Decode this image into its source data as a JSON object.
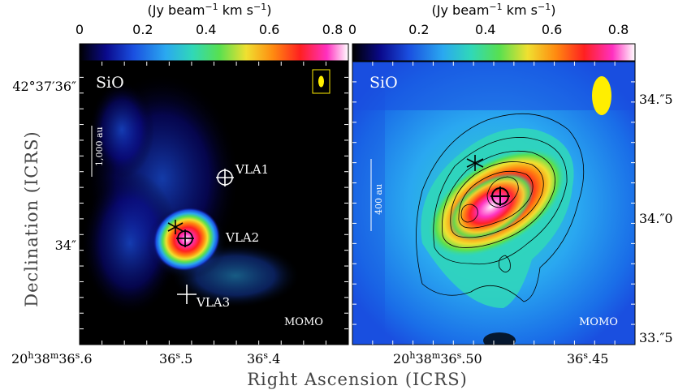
{
  "figure": {
    "ylabel": "Declination (ICRS)",
    "xlabel": "Right Ascension (ICRS)",
    "credit": "MOMO"
  },
  "colors": {
    "background": "#000000",
    "colormap": [
      "#000000",
      "#0a0a8c",
      "#1a4fe0",
      "#2aa8f0",
      "#30d8b8",
      "#58e050",
      "#f0e030",
      "#ff8a10",
      "#ff2020",
      "#ff30c0",
      "#ffffff"
    ],
    "beam": "#ffee00"
  },
  "chart_data": [
    {
      "type": "heatmap",
      "molecule": "SiO",
      "colorbar": {
        "label": "(Jy beam⁻¹ km s⁻¹)",
        "range": [
          0,
          0.85
        ],
        "ticks": [
          "0",
          "0.2",
          "0.4",
          "0.6",
          "0.8"
        ]
      },
      "y_ticks": [
        {
          "label": "42°37′36″",
          "value": 36.0
        },
        {
          "label": "34″",
          "value": 34.0
        }
      ],
      "x_ticks": [
        {
          "label": "20h38m36.s6",
          "value": 36.6
        },
        {
          "label": "36.s5",
          "value": 36.5
        },
        {
          "label": "36.s4",
          "value": 36.4
        }
      ],
      "scalebar": "1,000 au",
      "sources": [
        {
          "name": "VLA1",
          "marker": "circle-cross"
        },
        {
          "name": "VLA2",
          "marker": "circle-cross"
        },
        {
          "name": "VLA3",
          "marker": "cross"
        }
      ],
      "emission_peak_jy": 0.8
    },
    {
      "type": "heatmap",
      "molecule": "SiO",
      "colorbar": {
        "label": "(Jy beam⁻¹ km s⁻¹)",
        "range": [
          0,
          0.85
        ],
        "ticks": [
          "0",
          "0.2",
          "0.4",
          "0.6",
          "0.8"
        ]
      },
      "y_ticks": [
        {
          "label": "34.″5",
          "value": 34.5
        },
        {
          "label": "34.″0",
          "value": 34.0
        },
        {
          "label": "33.″5",
          "value": 33.5
        }
      ],
      "x_ticks": [
        {
          "label": "20h38m36.s50",
          "value": 36.5
        },
        {
          "label": "36.s45",
          "value": 36.45
        }
      ],
      "scalebar": "400 au",
      "contours": true,
      "emission_peak_jy": 0.8
    }
  ]
}
